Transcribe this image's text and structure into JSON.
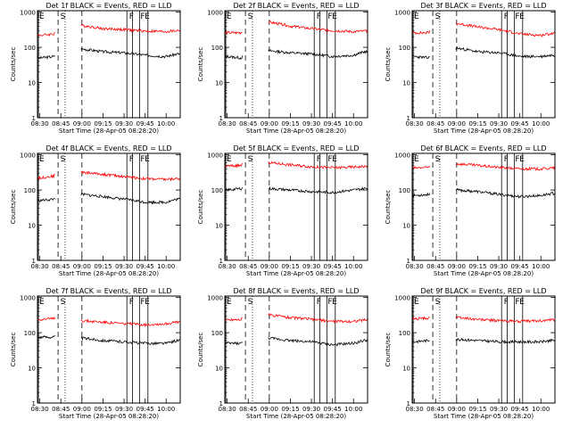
{
  "panel_titles": [
    "Det 1f BLACK = Events, RED = LLD",
    "Det 2f BLACK = Events, RED = LLD",
    "Det 3f BLACK = Events, RED = LLD",
    "Det 4f BLACK = Events, RED = LLD",
    "Det 5f BLACK = Events, RED = LLD",
    "Det 6f BLACK = Events, RED = LLD",
    "Det 7f BLACK = Events, RED = LLD",
    "Det 8f BLACK = Events, RED = LLD",
    "Det 9f BLACK = Events, RED = LLD"
  ],
  "ylabel": "Counts/sec",
  "xlabel": "Start Time (28-Apr-05 08:28:20)",
  "x_ticks": [
    "08:30",
    "08:45",
    "09:00",
    "09:15",
    "09:30",
    "09:45",
    "10:00"
  ],
  "y_ticks": [
    "1",
    "10",
    "100",
    "1000"
  ],
  "marker_labels": {
    "E": "E",
    "S": "S",
    "F": "F"
  },
  "colors": {
    "events": "#000000",
    "lld": "#ff0000"
  },
  "chart_data": [
    {
      "type": "line",
      "title": "Det 1f BLACK = Events, RED = LLD",
      "yscale": "log",
      "ylim": [
        1,
        1100
      ],
      "xlim": [
        "08:28:20",
        "10:10:00"
      ],
      "series": [
        {
          "name": "Events",
          "x": [
            "08:30",
            "08:40",
            "08:41",
            "09:00",
            "09:15",
            "09:30",
            "09:45",
            "10:00",
            "10:08"
          ],
          "values": [
            50,
            55,
            60,
            90,
            75,
            70,
            60,
            55,
            65
          ]
        },
        {
          "name": "LLD",
          "x": [
            "08:30",
            "08:40",
            "08:41",
            "09:00",
            "09:15",
            "09:30",
            "09:45",
            "10:00",
            "10:08"
          ],
          "values": [
            220,
            240,
            270,
            420,
            340,
            320,
            290,
            280,
            300
          ]
        }
      ],
      "event_lines": [
        "08:29",
        "08:43",
        "08:48",
        "09:00",
        "09:32",
        "09:36",
        "09:41",
        "09:47"
      ]
    },
    {
      "type": "line",
      "title": "Det 2f BLACK = Events, RED = LLD",
      "yscale": "log",
      "ylim": [
        1,
        1100
      ],
      "xlim": [
        "08:28:20",
        "10:10:00"
      ],
      "series": [
        {
          "name": "Events",
          "x": [
            "08:30",
            "08:40",
            "08:41",
            "09:00",
            "09:15",
            "09:30",
            "09:45",
            "10:00",
            "10:08"
          ],
          "values": [
            55,
            50,
            55,
            80,
            70,
            65,
            55,
            60,
            75
          ]
        },
        {
          "name": "LLD",
          "x": [
            "08:30",
            "08:40",
            "08:41",
            "09:00",
            "09:15",
            "09:30",
            "09:45",
            "10:00",
            "10:08"
          ],
          "values": [
            260,
            260,
            300,
            520,
            400,
            340,
            300,
            280,
            290
          ]
        }
      ],
      "event_lines": [
        "08:29",
        "08:43",
        "08:48",
        "09:00",
        "09:32",
        "09:36",
        "09:41",
        "09:47"
      ]
    },
    {
      "type": "line",
      "title": "Det 3f BLACK = Events, RED = LLD",
      "yscale": "log",
      "ylim": [
        1,
        1100
      ],
      "xlim": [
        "08:28:20",
        "10:10:00"
      ],
      "series": [
        {
          "name": "Events",
          "x": [
            "08:30",
            "08:40",
            "08:41",
            "09:00",
            "09:15",
            "09:30",
            "09:45",
            "10:00",
            "10:08"
          ],
          "values": [
            55,
            50,
            55,
            95,
            75,
            70,
            55,
            55,
            60
          ]
        },
        {
          "name": "LLD",
          "x": [
            "08:30",
            "08:40",
            "08:41",
            "09:00",
            "09:15",
            "09:30",
            "09:45",
            "10:00",
            "10:08"
          ],
          "values": [
            260,
            260,
            300,
            480,
            380,
            320,
            240,
            220,
            250
          ]
        }
      ],
      "event_lines": [
        "08:29",
        "08:43",
        "08:48",
        "09:00",
        "09:32",
        "09:36",
        "09:41",
        "09:47"
      ]
    },
    {
      "type": "line",
      "title": "Det 4f BLACK = Events, RED = LLD",
      "yscale": "log",
      "ylim": [
        1,
        1100
      ],
      "xlim": [
        "08:28:20",
        "10:10:00"
      ],
      "series": [
        {
          "name": "Events",
          "x": [
            "08:30",
            "08:40",
            "08:41",
            "09:00",
            "09:15",
            "09:30",
            "09:45",
            "10:00",
            "10:08"
          ],
          "values": [
            50,
            55,
            60,
            75,
            65,
            55,
            45,
            45,
            55
          ]
        },
        {
          "name": "LLD",
          "x": [
            "08:30",
            "08:40",
            "08:41",
            "09:00",
            "09:15",
            "09:30",
            "09:45",
            "10:00",
            "10:08"
          ],
          "values": [
            220,
            250,
            290,
            320,
            280,
            240,
            210,
            200,
            210
          ]
        }
      ],
      "event_lines": [
        "08:29",
        "08:43",
        "08:48",
        "09:00",
        "09:32",
        "09:36",
        "09:41",
        "09:47"
      ]
    },
    {
      "type": "line",
      "title": "Det 5f BLACK = Events, RED = LLD",
      "yscale": "log",
      "ylim": [
        1,
        1100
      ],
      "xlim": [
        "08:28:20",
        "10:10:00"
      ],
      "series": [
        {
          "name": "Events",
          "x": [
            "08:30",
            "08:40",
            "08:41",
            "09:00",
            "09:15",
            "09:30",
            "09:45",
            "10:00",
            "10:08"
          ],
          "values": [
            100,
            110,
            115,
            110,
            100,
            90,
            85,
            100,
            110
          ]
        },
        {
          "name": "LLD",
          "x": [
            "08:30",
            "08:40",
            "08:41",
            "09:00",
            "09:15",
            "09:30",
            "09:45",
            "10:00",
            "10:08"
          ],
          "values": [
            480,
            500,
            550,
            600,
            520,
            460,
            430,
            450,
            470
          ]
        }
      ],
      "event_lines": [
        "08:29",
        "08:43",
        "08:48",
        "09:00",
        "09:32",
        "09:36",
        "09:41",
        "09:47"
      ]
    },
    {
      "type": "line",
      "title": "Det 6f BLACK = Events, RED = LLD",
      "yscale": "log",
      "ylim": [
        1,
        1100
      ],
      "xlim": [
        "08:28:20",
        "10:10:00"
      ],
      "series": [
        {
          "name": "Events",
          "x": [
            "08:30",
            "08:40",
            "08:41",
            "09:00",
            "09:15",
            "09:30",
            "09:45",
            "10:00",
            "10:08"
          ],
          "values": [
            70,
            75,
            85,
            100,
            90,
            75,
            65,
            70,
            80
          ]
        },
        {
          "name": "LLD",
          "x": [
            "08:30",
            "08:40",
            "08:41",
            "09:00",
            "09:15",
            "09:30",
            "09:45",
            "10:00",
            "10:08"
          ],
          "values": [
            420,
            440,
            500,
            560,
            500,
            440,
            400,
            400,
            420
          ]
        }
      ],
      "event_lines": [
        "08:29",
        "08:43",
        "08:48",
        "09:00",
        "09:32",
        "09:36",
        "09:41",
        "09:47"
      ]
    },
    {
      "type": "line",
      "title": "Det 7f BLACK = Events, RED = LLD",
      "yscale": "log",
      "ylim": [
        1,
        1100
      ],
      "xlim": [
        "08:28:20",
        "10:10:00"
      ],
      "series": [
        {
          "name": "Events",
          "x": [
            "08:30",
            "08:40",
            "08:41",
            "09:00",
            "09:15",
            "09:30",
            "09:45",
            "10:00",
            "10:08"
          ],
          "values": [
            75,
            75,
            80,
            70,
            60,
            55,
            50,
            50,
            60
          ]
        },
        {
          "name": "LLD",
          "x": [
            "08:30",
            "08:40",
            "08:41",
            "09:00",
            "09:15",
            "09:30",
            "09:45",
            "10:00",
            "10:08"
          ],
          "values": [
            240,
            250,
            300,
            220,
            200,
            180,
            170,
            180,
            200
          ]
        }
      ],
      "event_lines": [
        "08:29",
        "08:43",
        "08:48",
        "09:00",
        "09:32",
        "09:36",
        "09:41",
        "09:47"
      ]
    },
    {
      "type": "line",
      "title": "Det 8f BLACK = Events, RED = LLD",
      "yscale": "log",
      "ylim": [
        1,
        1100
      ],
      "xlim": [
        "08:28:20",
        "10:10:00"
      ],
      "series": [
        {
          "name": "Events",
          "x": [
            "08:30",
            "08:40",
            "08:41",
            "09:00",
            "09:15",
            "09:30",
            "09:45",
            "10:00",
            "10:08"
          ],
          "values": [
            50,
            50,
            55,
            70,
            60,
            55,
            45,
            50,
            60
          ]
        },
        {
          "name": "LLD",
          "x": [
            "08:30",
            "08:40",
            "08:41",
            "09:00",
            "09:15",
            "09:30",
            "09:45",
            "10:00",
            "10:08"
          ],
          "values": [
            230,
            240,
            270,
            320,
            270,
            240,
            210,
            210,
            230
          ]
        }
      ],
      "event_lines": [
        "08:29",
        "08:43",
        "08:48",
        "09:00",
        "09:32",
        "09:36",
        "09:41",
        "09:47"
      ]
    },
    {
      "type": "line",
      "title": "Det 9f BLACK = Events, RED = LLD",
      "yscale": "log",
      "ylim": [
        1,
        1100
      ],
      "xlim": [
        "08:28:20",
        "10:10:00"
      ],
      "series": [
        {
          "name": "Events",
          "x": [
            "08:30",
            "08:40",
            "08:41",
            "09:00",
            "09:15",
            "09:30",
            "09:45",
            "10:00",
            "10:08"
          ],
          "values": [
            55,
            60,
            65,
            65,
            60,
            55,
            55,
            55,
            60
          ]
        },
        {
          "name": "LLD",
          "x": [
            "08:30",
            "08:40",
            "08:41",
            "09:00",
            "09:15",
            "09:30",
            "09:45",
            "10:00",
            "10:08"
          ],
          "values": [
            250,
            260,
            300,
            270,
            240,
            220,
            210,
            220,
            230
          ]
        }
      ],
      "event_lines": [
        "08:29",
        "08:43",
        "08:48",
        "09:00",
        "09:32",
        "09:36",
        "09:41",
        "09:47"
      ]
    }
  ]
}
